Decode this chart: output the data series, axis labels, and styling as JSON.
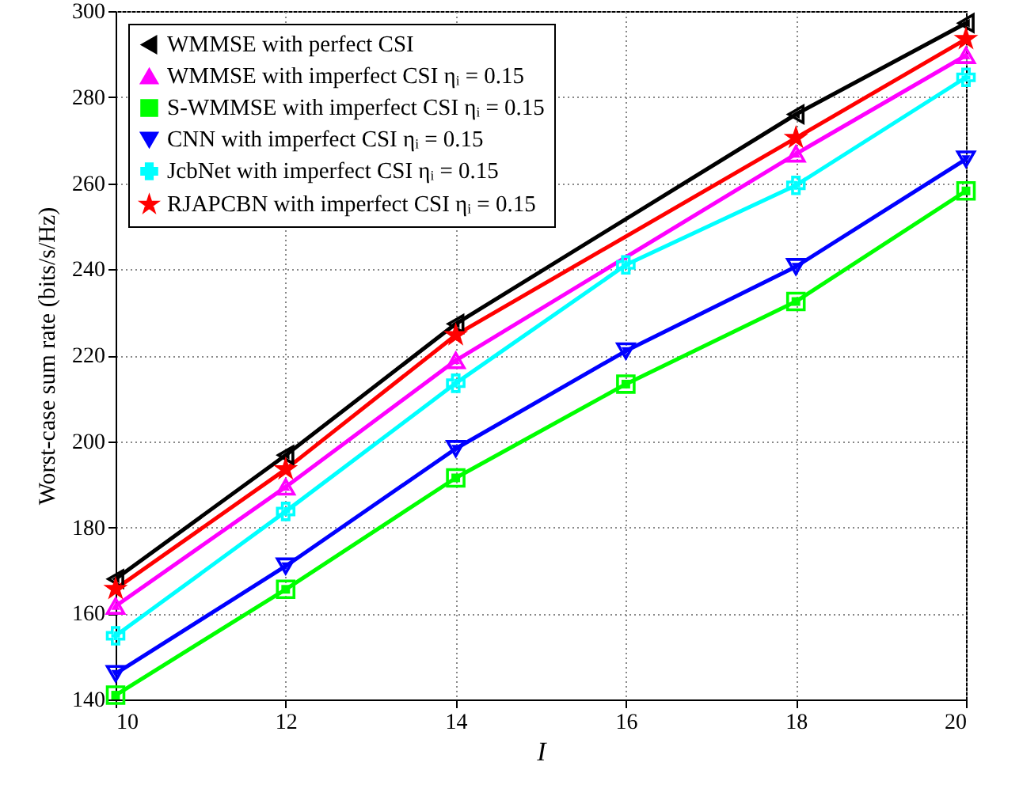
{
  "chart_data": {
    "type": "line",
    "xlabel": "I",
    "ylabel": "Worst-case sum rate (bits/s/Hz)",
    "x": [
      10,
      12,
      14,
      16,
      18,
      20
    ],
    "xlim": [
      10,
      20
    ],
    "xticks": [
      10,
      12,
      14,
      16,
      18,
      20
    ],
    "ylim": [
      140,
      300
    ],
    "yticks": [
      140,
      160,
      180,
      200,
      220,
      240,
      260,
      280,
      300
    ],
    "grid": true,
    "legend": "top left",
    "line_style": "solid",
    "series": [
      {
        "name": "WMMSE with perfect CSI",
        "color": "#000000",
        "marker": "triangle-left",
        "values": [
          168,
          196.8,
          227.3,
          null,
          276,
          297.2
        ]
      },
      {
        "name": "WMMSE with imperfect CSI ηᵢ = 0.15",
        "color": "#ff00ff",
        "marker": "triangle",
        "values": [
          161.7,
          189.4,
          218.8,
          null,
          266.8,
          289.7
        ]
      },
      {
        "name": "S-WMMSE with imperfect CSI ηᵢ = 0.15",
        "color": "#00ff00",
        "marker": "square",
        "values": [
          141,
          165.6,
          191.5,
          213.3,
          232.5,
          258.2
        ]
      },
      {
        "name": "CNN with imperfect CSI ηᵢ = 0.15",
        "color": "#0000ff",
        "marker": "triangle-down",
        "values": [
          146,
          171,
          198.3,
          221,
          240.6,
          265.6
        ]
      },
      {
        "name": "JcbNet with imperfect CSI ηᵢ = 0.15",
        "color": "#00ffff",
        "marker": "cross",
        "values": [
          154.8,
          183.7,
          213.5,
          241,
          259.5,
          284.6
        ]
      },
      {
        "name": "RJAPCBN with imperfect CSI ηᵢ = 0.15",
        "color": "#ff0000",
        "marker": "star",
        "values": [
          165.7,
          193.5,
          224.7,
          null,
          270.5,
          293.5
        ]
      }
    ]
  }
}
